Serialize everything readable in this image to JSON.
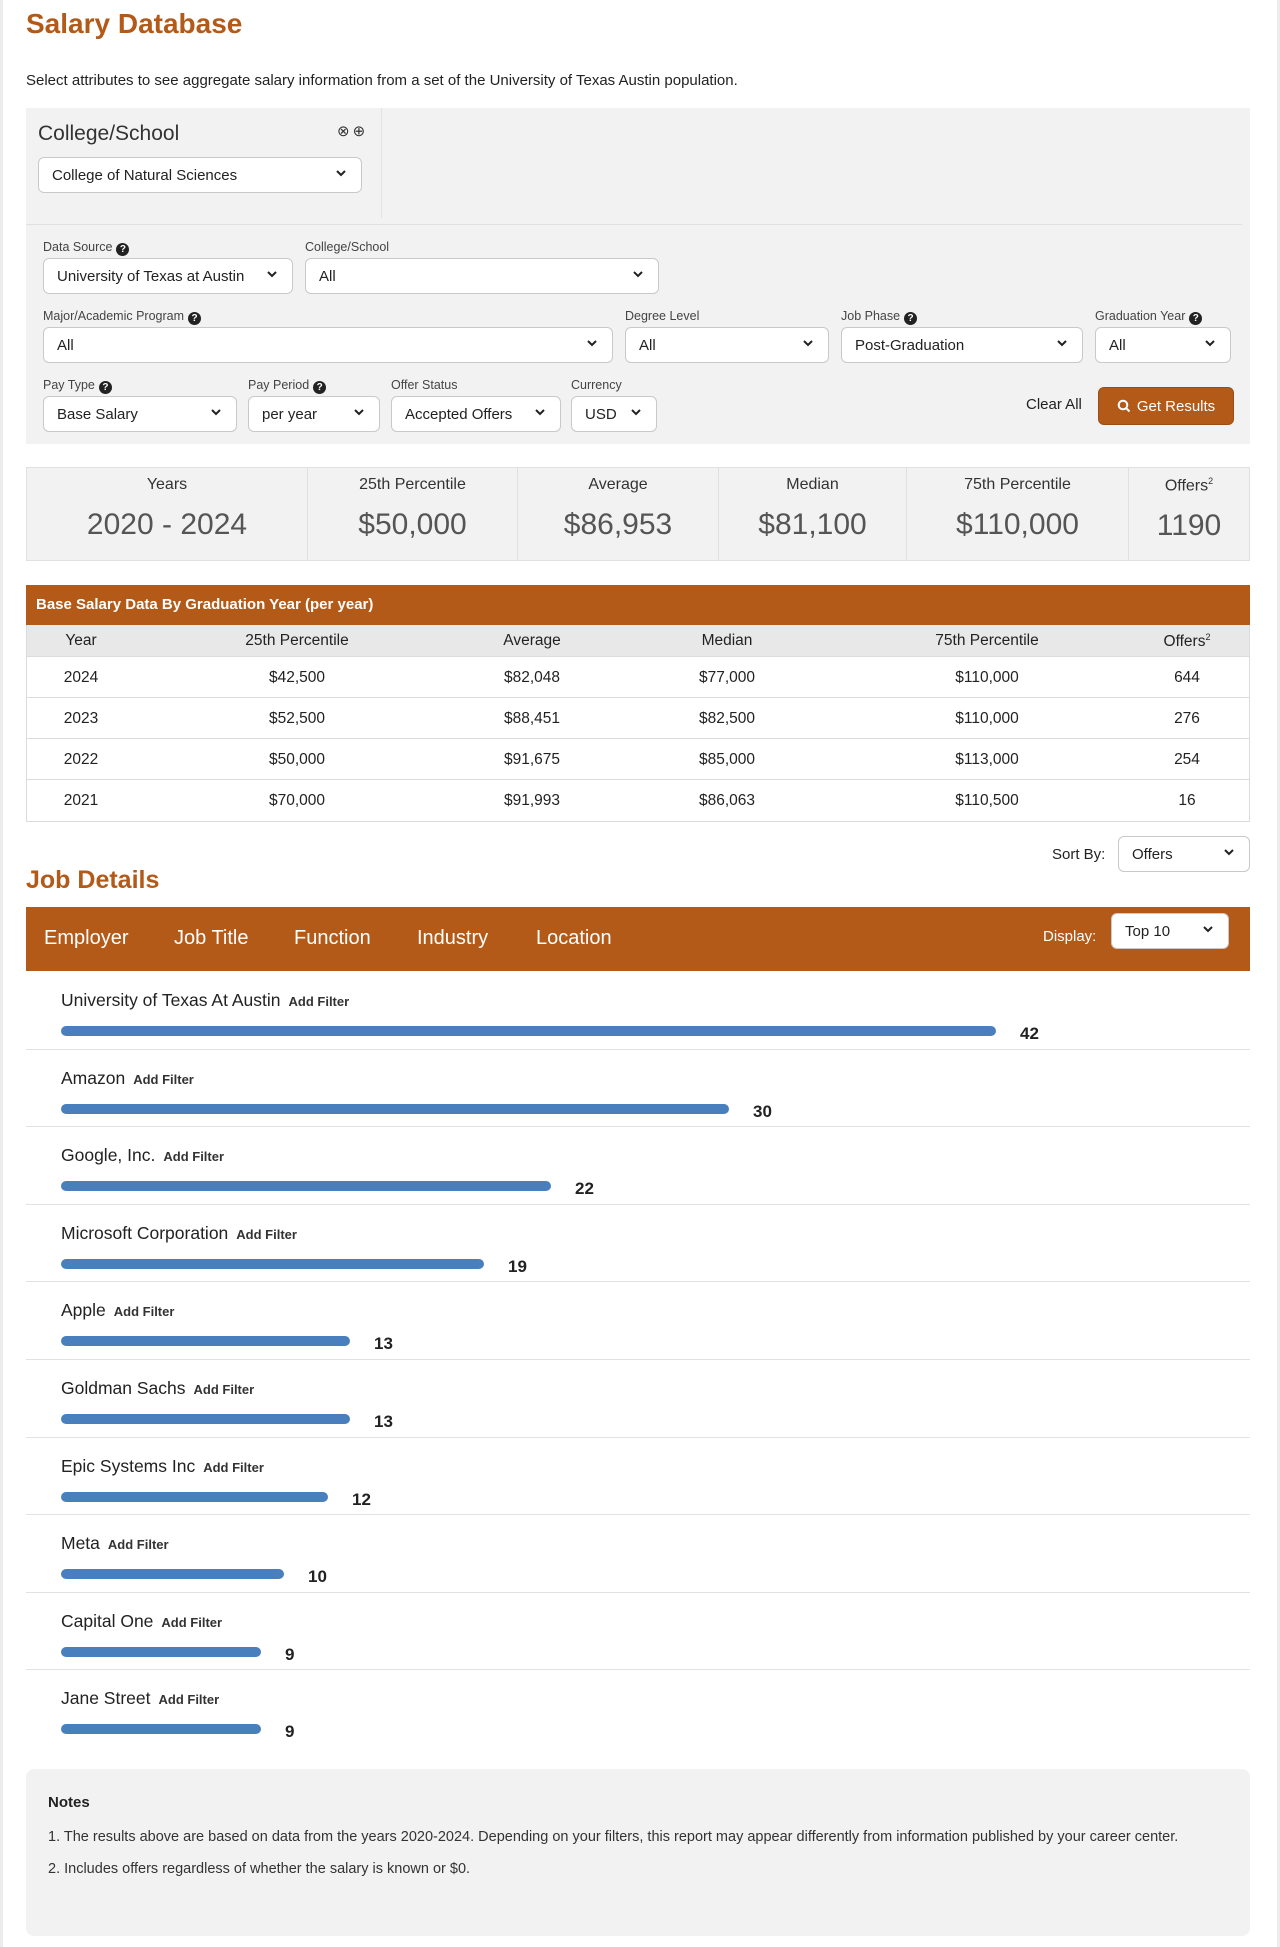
{
  "page": {
    "title": "Salary Database",
    "intro": "Select attributes to see aggregate salary information from a set of the University of Texas Austin population."
  },
  "college_box": {
    "title": "College/School",
    "selected": "College of Natural Sciences"
  },
  "filters": {
    "data_source": {
      "label": "Data Source",
      "value": "University of Texas at Austin"
    },
    "college_school": {
      "label": "College/School",
      "value": "All"
    },
    "major": {
      "label": "Major/Academic Program",
      "value": "All"
    },
    "degree_level": {
      "label": "Degree Level",
      "value": "All"
    },
    "job_phase": {
      "label": "Job Phase",
      "value": "Post-Graduation"
    },
    "graduation_year": {
      "label": "Graduation Year",
      "value": "All"
    },
    "pay_type": {
      "label": "Pay Type",
      "value": "Base Salary"
    },
    "pay_period": {
      "label": "Pay Period",
      "value": "per year"
    },
    "offer_status": {
      "label": "Offer Status",
      "value": "Accepted Offers"
    },
    "currency": {
      "label": "Currency",
      "value": "USD"
    },
    "clear_all": "Clear All",
    "get_results": "Get Results"
  },
  "summary": [
    {
      "label": "Years",
      "value": "2020 - 2024"
    },
    {
      "label": "25th Percentile",
      "value": "$50,000"
    },
    {
      "label": "Average",
      "value": "$86,953"
    },
    {
      "label": "Median",
      "value": "$81,100"
    },
    {
      "label": "75th Percentile",
      "value": "$110,000"
    },
    {
      "label": "Offers",
      "sup": "2",
      "value": "1190"
    }
  ],
  "table": {
    "title": "Base Salary Data By Graduation Year (per year)",
    "headers": {
      "year": "Year",
      "p25": "25th Percentile",
      "avg": "Average",
      "median": "Median",
      "p75": "75th Percentile",
      "offers": "Offers",
      "offers_sup": "2"
    },
    "rows": [
      {
        "year": "2024",
        "p25": "$42,500",
        "avg": "$82,048",
        "median": "$77,000",
        "p75": "$110,000",
        "offers": "644"
      },
      {
        "year": "2023",
        "p25": "$52,500",
        "avg": "$88,451",
        "median": "$82,500",
        "p75": "$110,000",
        "offers": "276"
      },
      {
        "year": "2022",
        "p25": "$50,000",
        "avg": "$91,675",
        "median": "$85,000",
        "p75": "$113,000",
        "offers": "254"
      },
      {
        "year": "2021",
        "p25": "$70,000",
        "avg": "$91,993",
        "median": "$86,063",
        "p75": "$110,500",
        "offers": "16"
      }
    ]
  },
  "sort": {
    "label": "Sort By:",
    "value": "Offers"
  },
  "job_details": {
    "title": "Job Details",
    "tabs": [
      "Employer",
      "Job Title",
      "Function",
      "Industry",
      "Location"
    ],
    "display_label": "Display:",
    "display_value": "Top 10",
    "add_filter_label": "Add Filter",
    "employers": [
      {
        "name": "University of Texas At Austin",
        "count": 42
      },
      {
        "name": "Amazon",
        "count": 30
      },
      {
        "name": "Google, Inc.",
        "count": 22
      },
      {
        "name": "Microsoft Corporation",
        "count": 19
      },
      {
        "name": "Apple",
        "count": 13
      },
      {
        "name": "Goldman Sachs",
        "count": 13
      },
      {
        "name": "Epic Systems Inc",
        "count": 12
      },
      {
        "name": "Meta",
        "count": 10
      },
      {
        "name": "Capital One",
        "count": 9
      },
      {
        "name": "Jane Street",
        "count": 9
      }
    ]
  },
  "notes": {
    "title": "Notes",
    "items": [
      "1. The results above are based on data from the years 2020-2024. Depending on your filters, this report may appear differently from information published by your career center.",
      "2. Includes offers regardless of whether the salary is known or $0."
    ]
  },
  "colors": {
    "accent": "#b35a18",
    "bar": "#4a7fbd",
    "panel": "#f2f2f2"
  }
}
